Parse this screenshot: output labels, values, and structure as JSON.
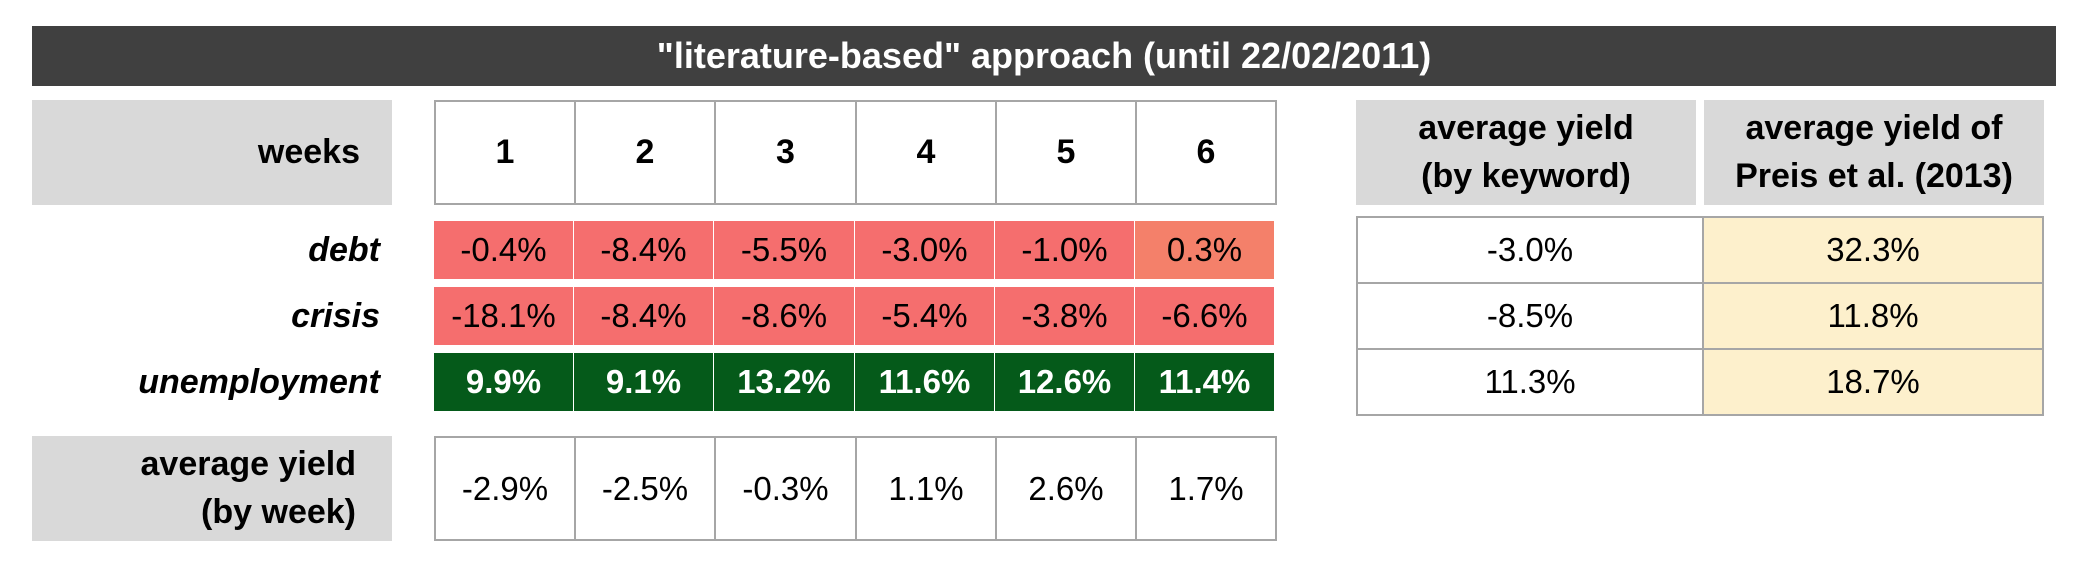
{
  "title": "\"literature-based\" approach (until 22/02/2011)",
  "colors": {
    "title_bg": "#404040",
    "label_bg": "#d9d9d9",
    "neg": "#f56e6e",
    "neg_light": "#f4806a",
    "pos": "#055a1a",
    "preis_bg": "#fdf0cc"
  },
  "chart_data": {
    "type": "table",
    "title": "\"literature-based\" approach (until 22/02/2011)",
    "weeks_label": "weeks",
    "weeks": [
      "1",
      "2",
      "3",
      "4",
      "5",
      "6"
    ],
    "rows": [
      {
        "keyword": "debt",
        "values": [
          "-0.4%",
          "-8.4%",
          "-5.5%",
          "-3.0%",
          "-1.0%",
          "0.3%"
        ],
        "avg_by_keyword": "-3.0%",
        "avg_preis": "32.3%"
      },
      {
        "keyword": "crisis",
        "values": [
          "-18.1%",
          "-8.4%",
          "-8.6%",
          "-5.4%",
          "-3.8%",
          "-6.6%"
        ],
        "avg_by_keyword": "-8.5%",
        "avg_preis": "11.8%"
      },
      {
        "keyword": "unemployment",
        "values": [
          "9.9%",
          "9.1%",
          "13.2%",
          "11.6%",
          "12.6%",
          "11.4%"
        ],
        "avg_by_keyword": "11.3%",
        "avg_preis": "18.7%"
      }
    ],
    "avg_by_week_label_1": "average yield",
    "avg_by_week_label_2": "(by week)",
    "avg_by_week": [
      "-2.9%",
      "-2.5%",
      "-0.3%",
      "1.1%",
      "2.6%",
      "1.7%"
    ],
    "avg_keyword_header_1": "average yield",
    "avg_keyword_header_2": "(by keyword)",
    "preis_header_1": "average yield of",
    "preis_header_2": "Preis et al. (2013)"
  }
}
